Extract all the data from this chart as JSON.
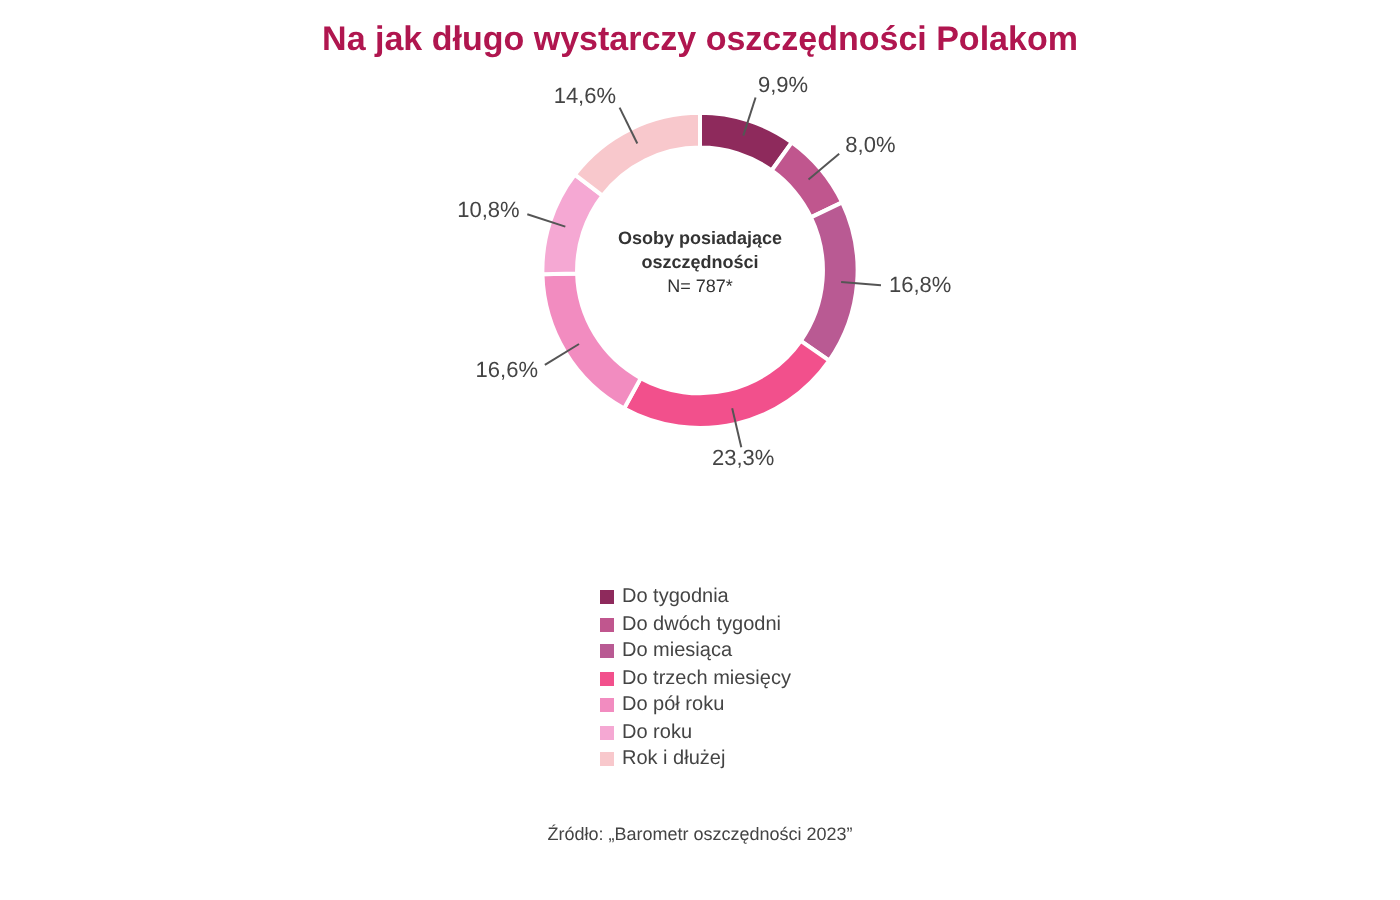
{
  "chart_data": {
    "type": "donut",
    "title": "Na jak długo wystarczy oszczędności Polakom",
    "categories": [
      "Do tygodnia",
      "Do dwóch tygodni",
      "Do miesiąca",
      "Do trzech miesięcy",
      "Do pół roku",
      "Do roku",
      "Rok i dłużej"
    ],
    "values": [
      9.9,
      8.0,
      16.8,
      23.3,
      16.6,
      10.8,
      14.6
    ],
    "value_labels": [
      "9,9%",
      "8,0%",
      "16,8%",
      "23,3%",
      "16,6%",
      "10,8%",
      "14,6%"
    ],
    "colors": [
      "#8e2a5c",
      "#c0568e",
      "#b95a93",
      "#f2508c",
      "#f28cc0",
      "#f5a8d3",
      "#f8c8cc"
    ],
    "legend": "bottom",
    "annotations": [
      "Osoby posiadające oszczędności",
      "N= 787*",
      "Źródło: „Barometr oszczędności 2023”"
    ]
  }
}
